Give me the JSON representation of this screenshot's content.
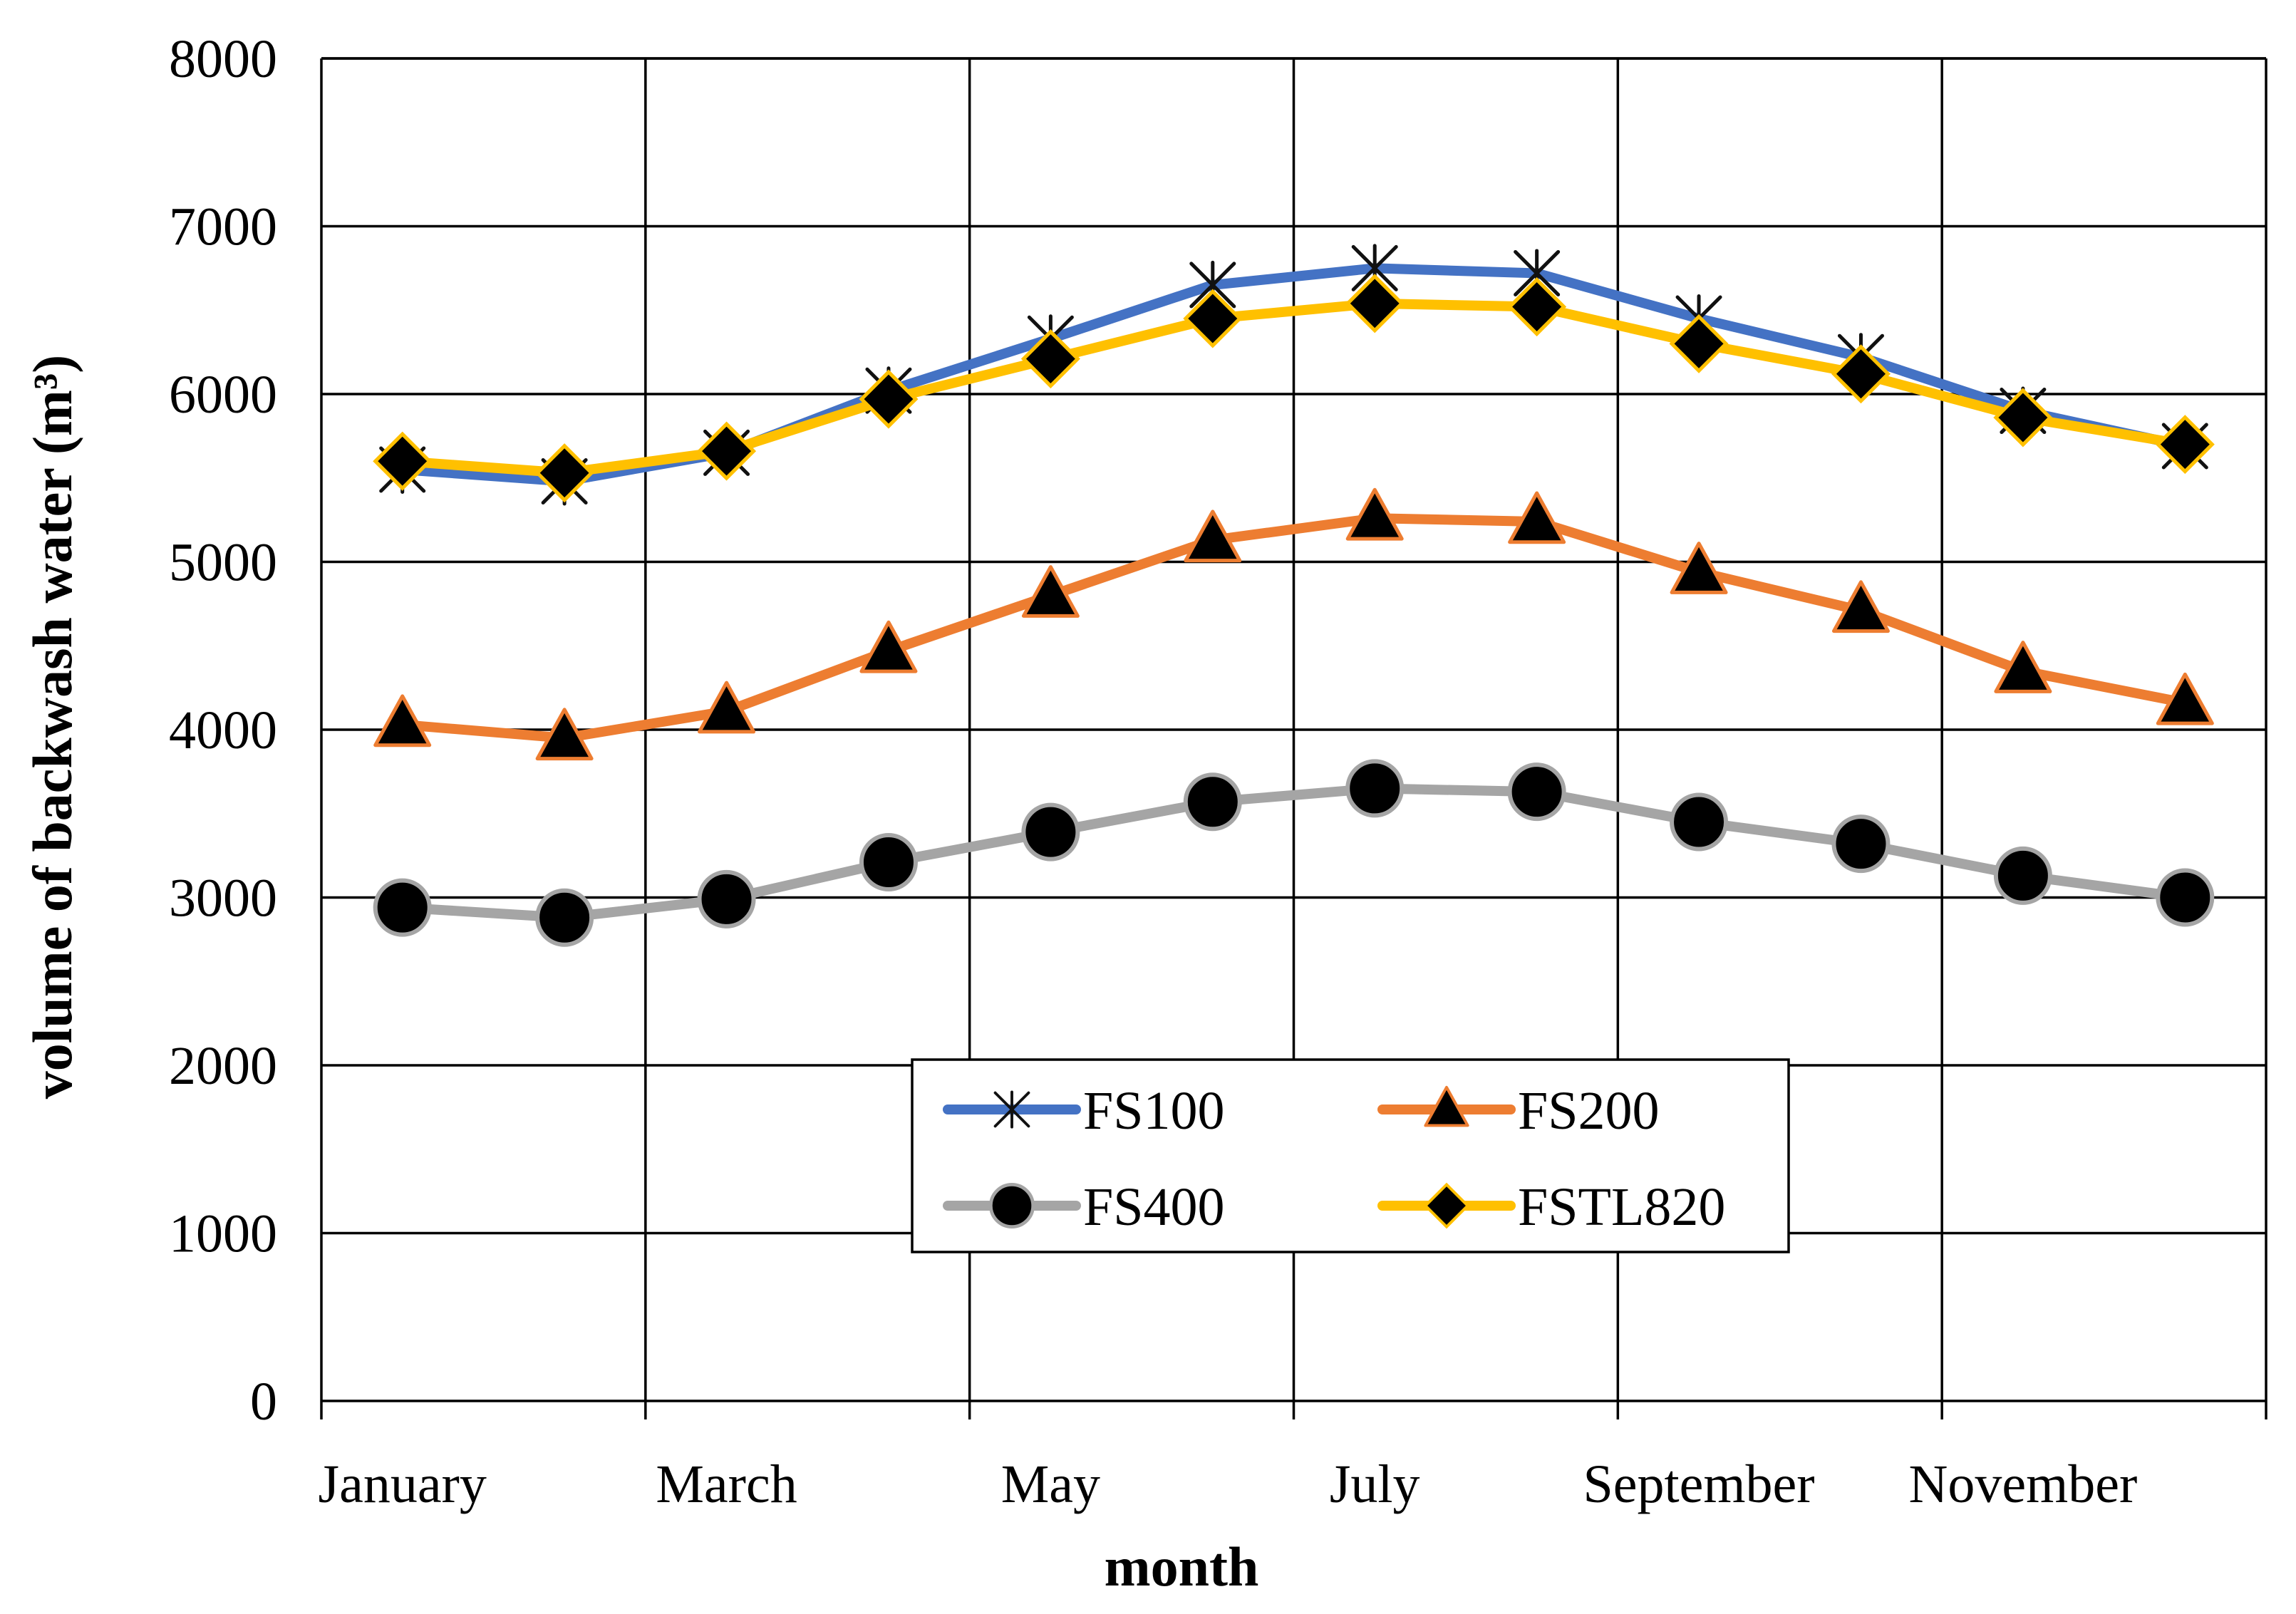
{
  "chart_data": {
    "type": "line",
    "title": "",
    "xlabel": "month",
    "ylabel": "volume of backwash water (m³)",
    "ylim": [
      0,
      8000
    ],
    "yticks": [
      0,
      1000,
      2000,
      3000,
      4000,
      5000,
      6000,
      7000,
      8000
    ],
    "grid": true,
    "legend_position": "bottom-center",
    "categories": [
      "January",
      "February",
      "March",
      "April",
      "May",
      "June",
      "July",
      "August",
      "September",
      "October",
      "November",
      "December"
    ],
    "x_tick_labels": [
      "January",
      "",
      "March",
      "",
      "May",
      "",
      "July",
      "",
      "September",
      "",
      "November",
      ""
    ],
    "series": [
      {
        "name": "FS100",
        "color": "#4472C4",
        "marker": "star",
        "values": [
          5550,
          5480,
          5650,
          6020,
          6330,
          6650,
          6750,
          6720,
          6450,
          6220,
          5900,
          5690
        ]
      },
      {
        "name": "FS200",
        "color": "#ED7D31",
        "marker": "triangle",
        "values": [
          4030,
          3950,
          4110,
          4470,
          4800,
          5130,
          5260,
          5240,
          4940,
          4710,
          4350,
          4160
        ]
      },
      {
        "name": "FS400",
        "color": "#A5A5A5",
        "marker": "circle",
        "values": [
          2940,
          2880,
          2990,
          3210,
          3390,
          3570,
          3650,
          3630,
          3450,
          3320,
          3130,
          3000
        ]
      },
      {
        "name": "FSTL820",
        "color": "#FFC000",
        "marker": "diamond",
        "values": [
          5600,
          5530,
          5660,
          5970,
          6210,
          6450,
          6540,
          6520,
          6300,
          6120,
          5860,
          5700
        ]
      }
    ]
  }
}
